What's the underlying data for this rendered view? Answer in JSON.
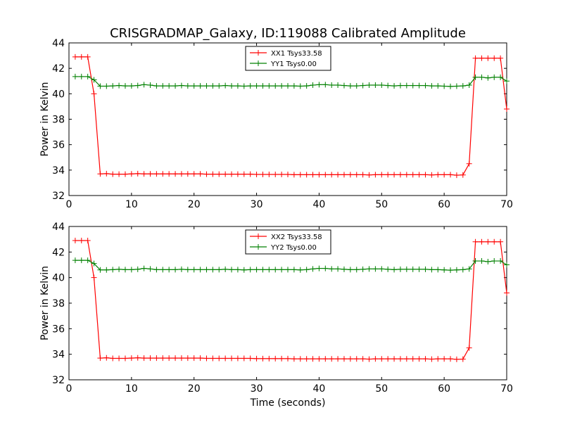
{
  "title": "CRISGRADMAP_Galaxy, ID:119088 Calibrated Amplitude",
  "colors": {
    "red": "#ff0000",
    "green": "#008000",
    "axis": "#000000"
  },
  "chart_data": [
    {
      "type": "line",
      "title": "CRISGRADMAP_Galaxy, ID:119088 Calibrated Amplitude",
      "xlabel": "",
      "ylabel": "Power in Kelvin",
      "xlim": [
        0,
        70
      ],
      "ylim": [
        32,
        44
      ],
      "xticks": [
        "0",
        "10",
        "20",
        "30",
        "40",
        "50",
        "60",
        "70"
      ],
      "yticks": [
        "32",
        "34",
        "36",
        "38",
        "40",
        "42",
        "44"
      ],
      "grid": false,
      "legend_position": "top-center",
      "x": [
        1,
        2,
        3,
        4,
        5,
        6,
        7,
        8,
        9,
        10,
        11,
        12,
        13,
        14,
        15,
        16,
        17,
        18,
        19,
        20,
        21,
        22,
        23,
        24,
        25,
        26,
        27,
        28,
        29,
        30,
        31,
        32,
        33,
        34,
        35,
        36,
        37,
        38,
        39,
        40,
        41,
        42,
        43,
        44,
        45,
        46,
        47,
        48,
        49,
        50,
        51,
        52,
        53,
        54,
        55,
        56,
        57,
        58,
        59,
        60,
        61,
        62,
        63,
        64,
        65,
        66,
        67,
        68,
        69,
        70
      ],
      "series": [
        {
          "name": "XX1 Tsys33.58",
          "color": "#ff0000",
          "values": [
            42.9,
            42.9,
            42.9,
            40.0,
            33.7,
            33.72,
            33.68,
            33.68,
            33.68,
            33.7,
            33.72,
            33.7,
            33.7,
            33.7,
            33.7,
            33.7,
            33.7,
            33.7,
            33.7,
            33.7,
            33.7,
            33.68,
            33.68,
            33.68,
            33.68,
            33.68,
            33.68,
            33.68,
            33.68,
            33.66,
            33.66,
            33.66,
            33.66,
            33.66,
            33.66,
            33.64,
            33.64,
            33.64,
            33.64,
            33.64,
            33.64,
            33.64,
            33.64,
            33.64,
            33.64,
            33.64,
            33.64,
            33.62,
            33.64,
            33.64,
            33.64,
            33.64,
            33.64,
            33.64,
            33.64,
            33.64,
            33.64,
            33.62,
            33.64,
            33.64,
            33.64,
            33.6,
            33.62,
            34.5,
            42.8,
            42.8,
            42.8,
            42.8,
            42.8,
            38.8
          ]
        },
        {
          "name": "YY1 Tsys0.00",
          "color": "#008000",
          "values": [
            41.35,
            41.35,
            41.35,
            41.1,
            40.6,
            40.6,
            40.62,
            40.65,
            40.62,
            40.62,
            40.65,
            40.72,
            40.68,
            40.62,
            40.62,
            40.62,
            40.62,
            40.65,
            40.62,
            40.62,
            40.62,
            40.62,
            40.62,
            40.62,
            40.65,
            40.62,
            40.62,
            40.6,
            40.62,
            40.62,
            40.62,
            40.62,
            40.62,
            40.62,
            40.62,
            40.62,
            40.6,
            40.62,
            40.68,
            40.72,
            40.72,
            40.68,
            40.68,
            40.65,
            40.62,
            40.62,
            40.65,
            40.68,
            40.68,
            40.68,
            40.65,
            40.62,
            40.65,
            40.65,
            40.65,
            40.65,
            40.65,
            40.62,
            40.62,
            40.6,
            40.58,
            40.6,
            40.62,
            40.68,
            41.3,
            41.3,
            41.25,
            41.3,
            41.3,
            41.0
          ]
        }
      ]
    },
    {
      "type": "line",
      "title": "",
      "xlabel": "Time (seconds)",
      "ylabel": "Power in Kelvin",
      "xlim": [
        0,
        70
      ],
      "ylim": [
        32,
        44
      ],
      "xticks": [
        "0",
        "10",
        "20",
        "30",
        "40",
        "50",
        "60",
        "70"
      ],
      "yticks": [
        "32",
        "34",
        "36",
        "38",
        "40",
        "42",
        "44"
      ],
      "grid": false,
      "legend_position": "top-center",
      "x": [
        1,
        2,
        3,
        4,
        5,
        6,
        7,
        8,
        9,
        10,
        11,
        12,
        13,
        14,
        15,
        16,
        17,
        18,
        19,
        20,
        21,
        22,
        23,
        24,
        25,
        26,
        27,
        28,
        29,
        30,
        31,
        32,
        33,
        34,
        35,
        36,
        37,
        38,
        39,
        40,
        41,
        42,
        43,
        44,
        45,
        46,
        47,
        48,
        49,
        50,
        51,
        52,
        53,
        54,
        55,
        56,
        57,
        58,
        59,
        60,
        61,
        62,
        63,
        64,
        65,
        66,
        67,
        68,
        69,
        70
      ],
      "series": [
        {
          "name": "XX2 Tsys33.58",
          "color": "#ff0000",
          "values": [
            42.9,
            42.9,
            42.9,
            40.0,
            33.7,
            33.72,
            33.68,
            33.68,
            33.68,
            33.7,
            33.72,
            33.7,
            33.7,
            33.7,
            33.7,
            33.7,
            33.7,
            33.7,
            33.7,
            33.7,
            33.7,
            33.68,
            33.68,
            33.68,
            33.68,
            33.68,
            33.68,
            33.68,
            33.68,
            33.66,
            33.66,
            33.66,
            33.66,
            33.66,
            33.66,
            33.64,
            33.64,
            33.64,
            33.64,
            33.64,
            33.64,
            33.64,
            33.64,
            33.64,
            33.64,
            33.64,
            33.64,
            33.62,
            33.64,
            33.64,
            33.64,
            33.64,
            33.64,
            33.64,
            33.64,
            33.64,
            33.64,
            33.62,
            33.64,
            33.64,
            33.64,
            33.6,
            33.62,
            34.5,
            42.8,
            42.8,
            42.8,
            42.8,
            42.8,
            38.8
          ]
        },
        {
          "name": "YY2 Tsys0.00",
          "color": "#008000",
          "values": [
            41.35,
            41.35,
            41.35,
            41.1,
            40.6,
            40.6,
            40.62,
            40.65,
            40.62,
            40.62,
            40.65,
            40.72,
            40.68,
            40.62,
            40.62,
            40.62,
            40.62,
            40.65,
            40.62,
            40.62,
            40.62,
            40.62,
            40.62,
            40.62,
            40.65,
            40.62,
            40.62,
            40.6,
            40.62,
            40.62,
            40.62,
            40.62,
            40.62,
            40.62,
            40.62,
            40.62,
            40.6,
            40.62,
            40.68,
            40.72,
            40.72,
            40.68,
            40.68,
            40.65,
            40.62,
            40.62,
            40.65,
            40.68,
            40.68,
            40.68,
            40.65,
            40.62,
            40.65,
            40.65,
            40.65,
            40.65,
            40.65,
            40.62,
            40.62,
            40.6,
            40.58,
            40.6,
            40.62,
            40.68,
            41.3,
            41.3,
            41.25,
            41.3,
            41.3,
            41.0
          ]
        }
      ]
    }
  ]
}
